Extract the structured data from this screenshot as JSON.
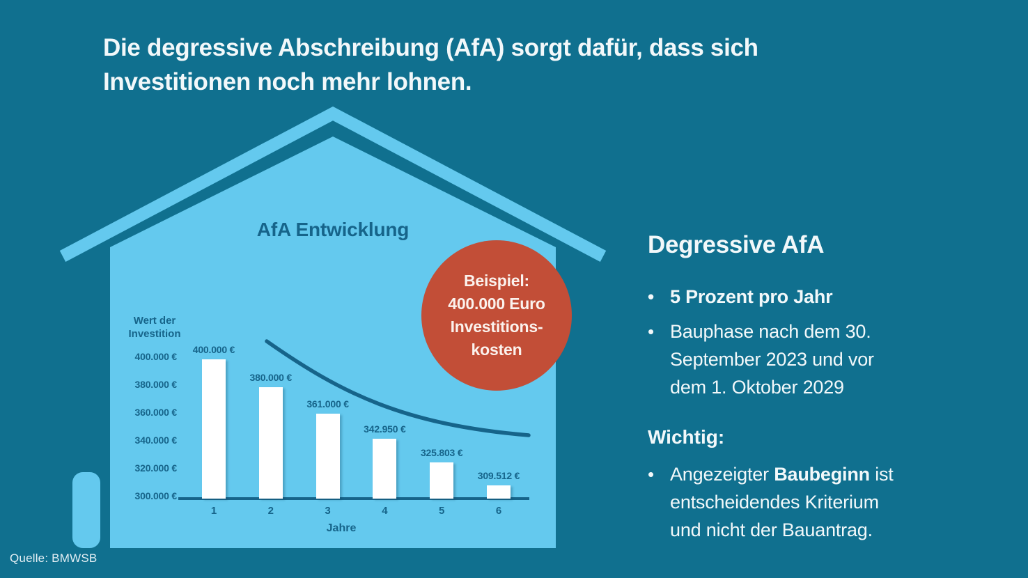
{
  "title": "Die degressive Abschreibung (AfA) sorgt dafür, dass sich\nInvestitionen noch mehr lohnen.",
  "source": "Quelle: BMWSB",
  "badge": {
    "lines": "Beispiel:\n400.000 Euro\nInvestitions-\nkosten"
  },
  "right_panel": {
    "heading": "Degressive AfA",
    "bullet_char": "•",
    "bullet1": "5 Prozent pro Jahr",
    "bullet2": "Bauphase nach dem 30.\nSeptember 2023 und vor\ndem 1. Oktober 2029",
    "important_heading": "Wichtig:",
    "important_bullet": {
      "pre": "Angezeigter ",
      "bold": "Baubeginn",
      "post": " ist\nentscheidendes Kriterium\nund nicht der Bauantrag."
    }
  },
  "chart_data": {
    "type": "bar",
    "title": "AfA Entwicklung",
    "ylabel": "Wert der\nInvestition",
    "xlabel": "Jahre",
    "categories": [
      "1",
      "2",
      "3",
      "4",
      "5",
      "6"
    ],
    "values": [
      400000,
      380000,
      361000,
      342950,
      325803,
      309512
    ],
    "value_labels": [
      "400.000 €",
      "380.000 €",
      "361.000 €",
      "342.950 €",
      "325.803 €",
      "309.512 €"
    ],
    "y_ticks": [
      400000,
      380000,
      360000,
      340000,
      320000,
      300000
    ],
    "y_tick_labels": [
      "400.000 €",
      "380.000 €",
      "360.000 €",
      "340.000 €",
      "320.000 €",
      "300.000 €"
    ],
    "ylim": [
      300000,
      400000
    ],
    "grid": false,
    "legend": false,
    "trend_line": "exponential decay curve above bars"
  },
  "colors": {
    "background": "#10708F",
    "house": "#64C9EE",
    "accent_red": "#C24E37",
    "chart_ink": "#16648A",
    "text_light": "#F2F8FA",
    "bar_fill": "#FFFFFF",
    "badge_text": "#FBF2ED"
  }
}
